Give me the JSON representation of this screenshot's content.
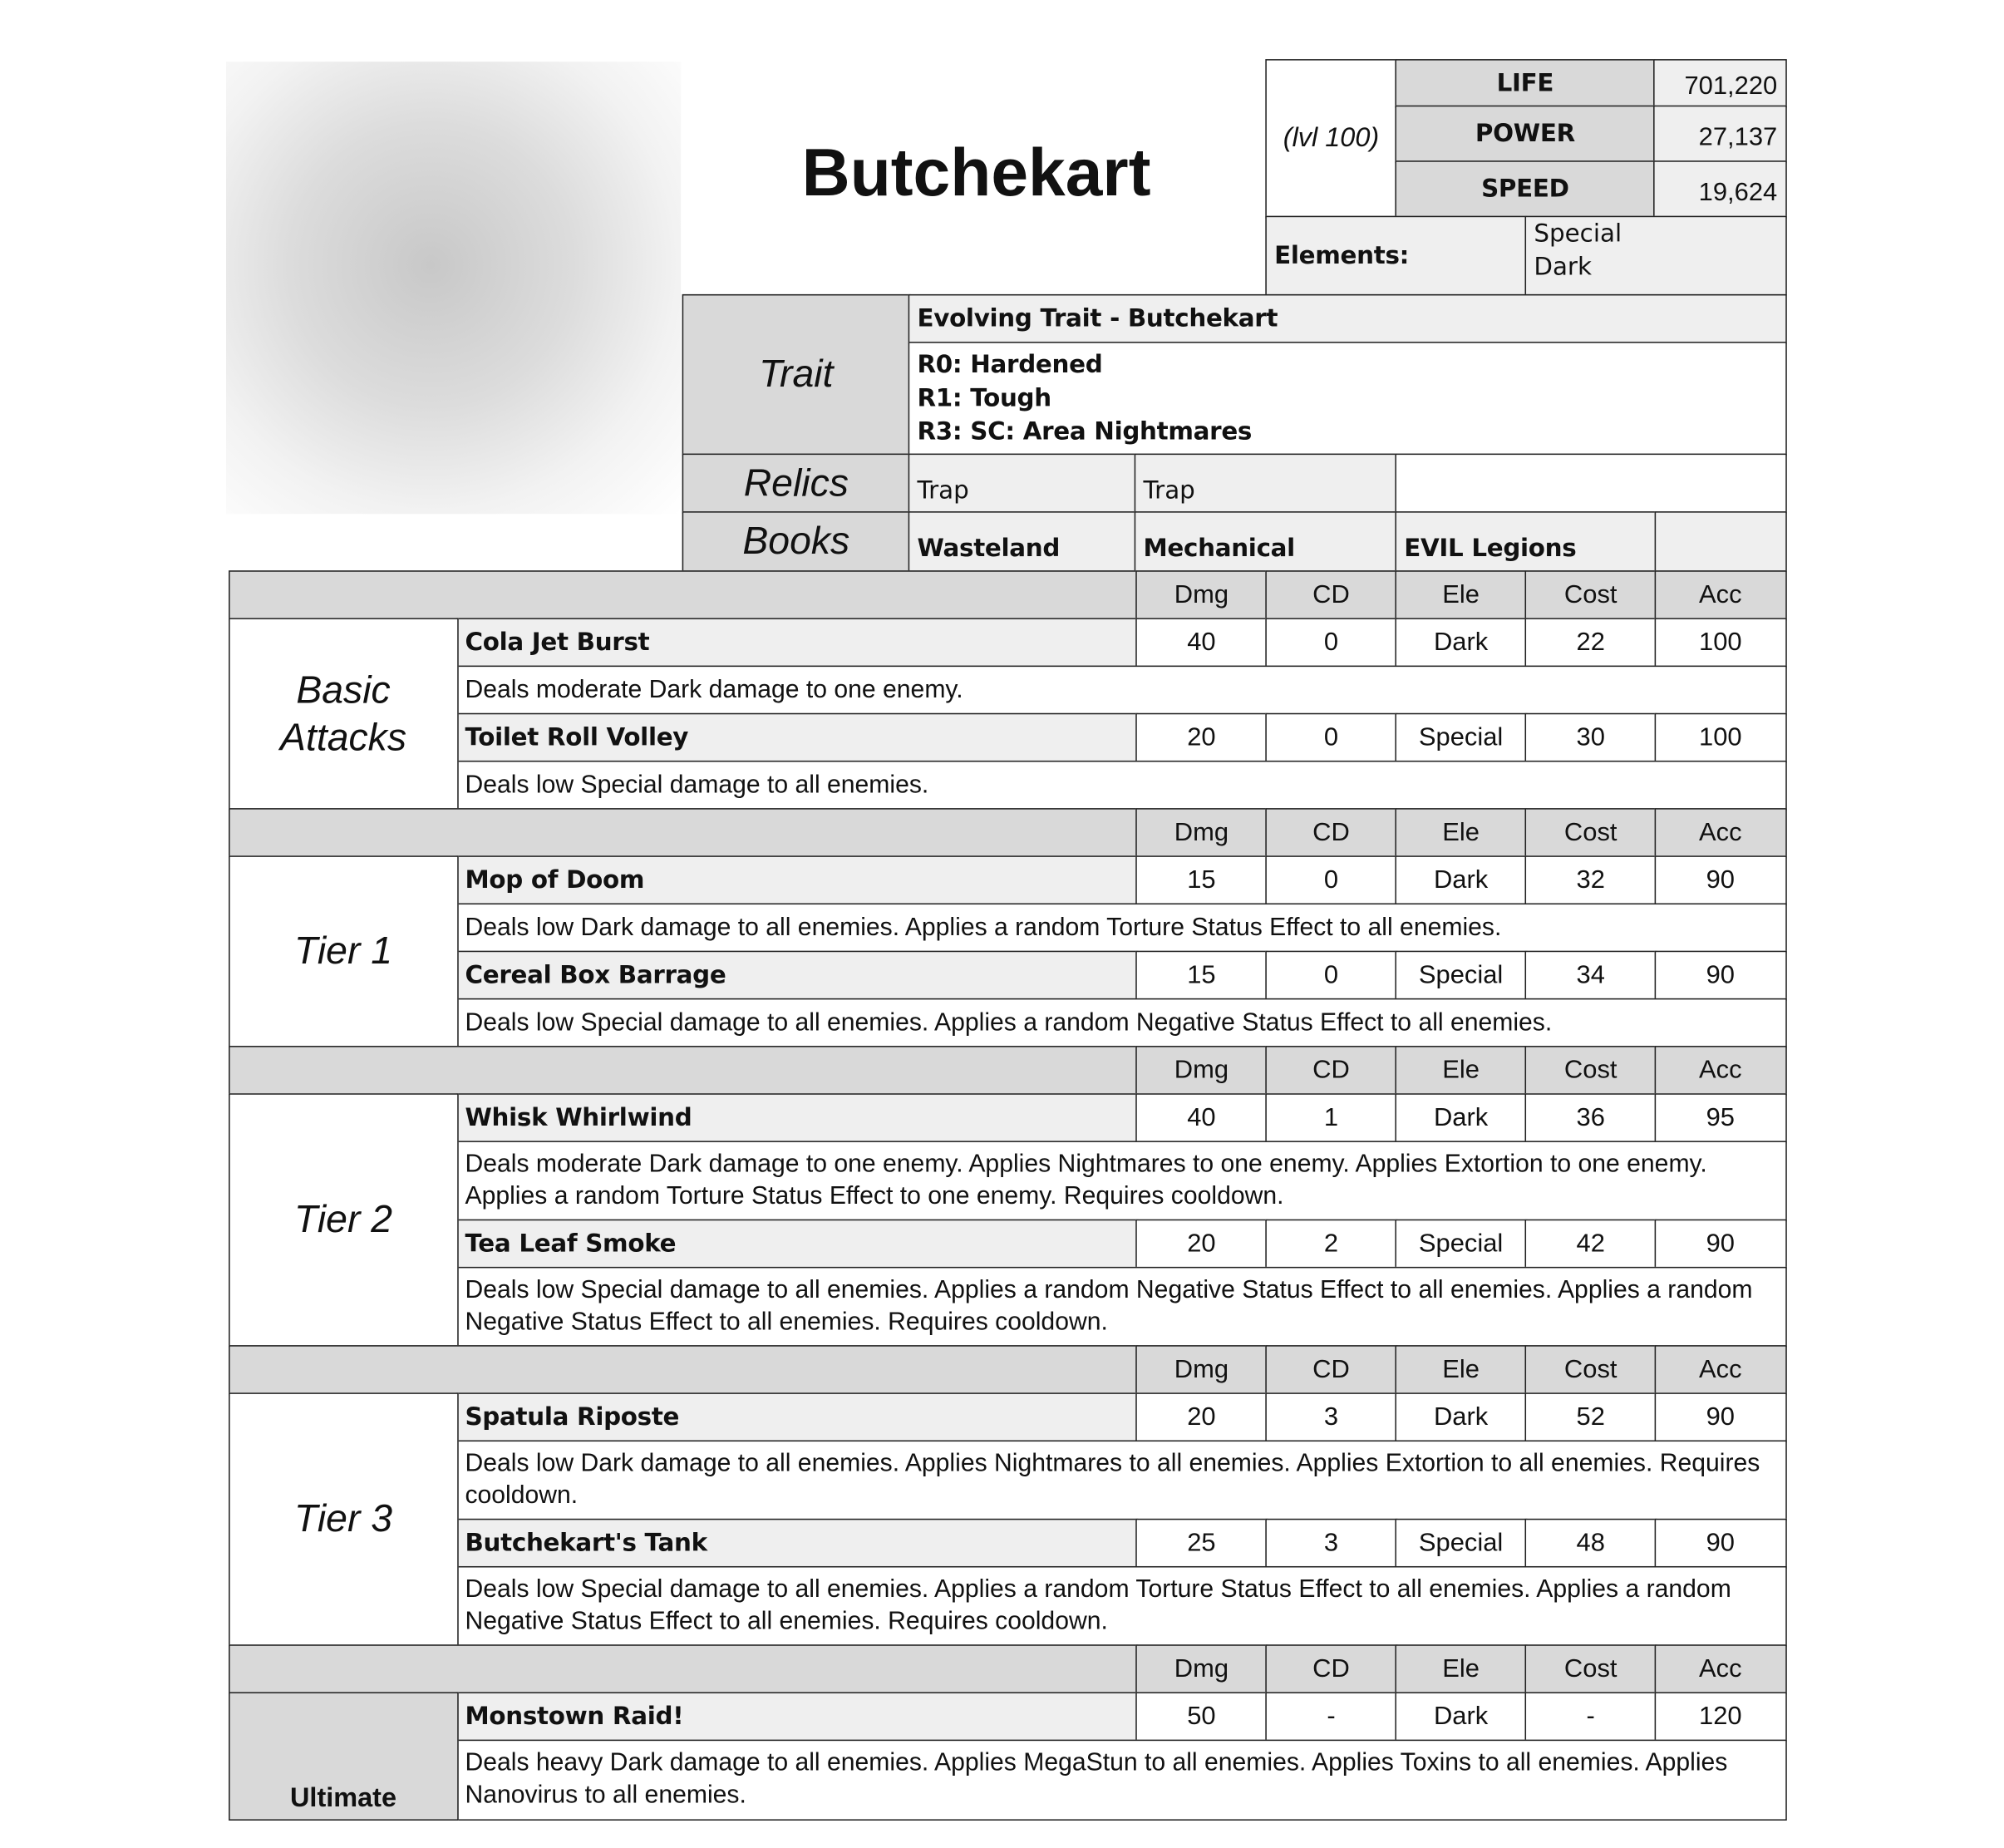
{
  "name": "Butchekart",
  "level": "(lvl 100)",
  "stats": [
    {
      "label": "LIFE",
      "value": "701,220"
    },
    {
      "label": "POWER",
      "value": "27,137"
    },
    {
      "label": "SPEED",
      "value": "19,624"
    }
  ],
  "elements": {
    "label": "Elements:",
    "values": "Special\nDark"
  },
  "trait": {
    "label": "Trait",
    "title": "Evolving Trait - Butchekart",
    "lines": [
      "R0: Hardened",
      "R1: Tough",
      "R3: SC: Area Nightmares"
    ]
  },
  "relics": {
    "label": "Relics",
    "items": [
      "Trap",
      "Trap",
      ""
    ]
  },
  "books": {
    "label": "Books",
    "items": [
      "Wasteland",
      "Mechanical",
      "EVIL Legions",
      ""
    ]
  },
  "columns": [
    "Dmg",
    "CD",
    "Ele",
    "Cost",
    "Acc"
  ],
  "sections": [
    {
      "label": "Basic Attacks",
      "skills": [
        {
          "name": "Cola Jet Burst",
          "stats": [
            "40",
            "0",
            "Dark",
            "22",
            "100"
          ],
          "desc": "Deals moderate Dark damage to one enemy."
        },
        {
          "name": "Toilet Roll Volley",
          "stats": [
            "20",
            "0",
            "Special",
            "30",
            "100"
          ],
          "desc": "Deals low Special damage to all enemies."
        }
      ]
    },
    {
      "label": "Tier 1",
      "skills": [
        {
          "name": "Mop of Doom",
          "stats": [
            "15",
            "0",
            "Dark",
            "32",
            "90"
          ],
          "desc": "Deals low Dark damage to all enemies. Applies a random Torture Status Effect to all enemies."
        },
        {
          "name": "Cereal Box Barrage",
          "stats": [
            "15",
            "0",
            "Special",
            "34",
            "90"
          ],
          "desc": "Deals low Special damage to all enemies. Applies a random Negative Status Effect to all enemies."
        }
      ]
    },
    {
      "label": "Tier 2",
      "skills": [
        {
          "name": "Whisk Whirlwind",
          "stats": [
            "40",
            "1",
            "Dark",
            "36",
            "95"
          ],
          "desc": "Deals moderate Dark damage to one enemy. Applies Nightmares to one enemy. Applies Extortion to one enemy. Applies a random Torture Status Effect to one enemy. Requires cooldown."
        },
        {
          "name": "Tea Leaf Smoke",
          "stats": [
            "20",
            "2",
            "Special",
            "42",
            "90"
          ],
          "desc": "Deals low Special damage to all enemies. Applies a random Negative Status Effect to all enemies. Applies a random Negative Status Effect to all enemies. Requires cooldown."
        }
      ]
    },
    {
      "label": "Tier 3",
      "skills": [
        {
          "name": "Spatula Riposte",
          "stats": [
            "20",
            "3",
            "Dark",
            "52",
            "90"
          ],
          "desc": "Deals low Dark damage to all enemies. Applies Nightmares to all enemies. Applies Extortion to all enemies. Requires cooldown."
        },
        {
          "name": "Butchekart's Tank",
          "stats": [
            "25",
            "3",
            "Special",
            "48",
            "90"
          ],
          "desc": "Deals low Special damage to all enemies. Applies a random Torture Status Effect to all enemies. Applies a random Negative Status Effect to all enemies. Requires cooldown."
        }
      ]
    },
    {
      "label": "Ultimate",
      "ultimate": true,
      "skills": [
        {
          "name": "Monstown Raid!",
          "stats": [
            "50",
            "-",
            "Dark",
            "-",
            "120"
          ],
          "desc": "Deals heavy Dark damage to all enemies. Applies MegaStun to all enemies. Applies Toxins to all enemies. Applies Nanovirus to all enemies."
        }
      ]
    }
  ]
}
